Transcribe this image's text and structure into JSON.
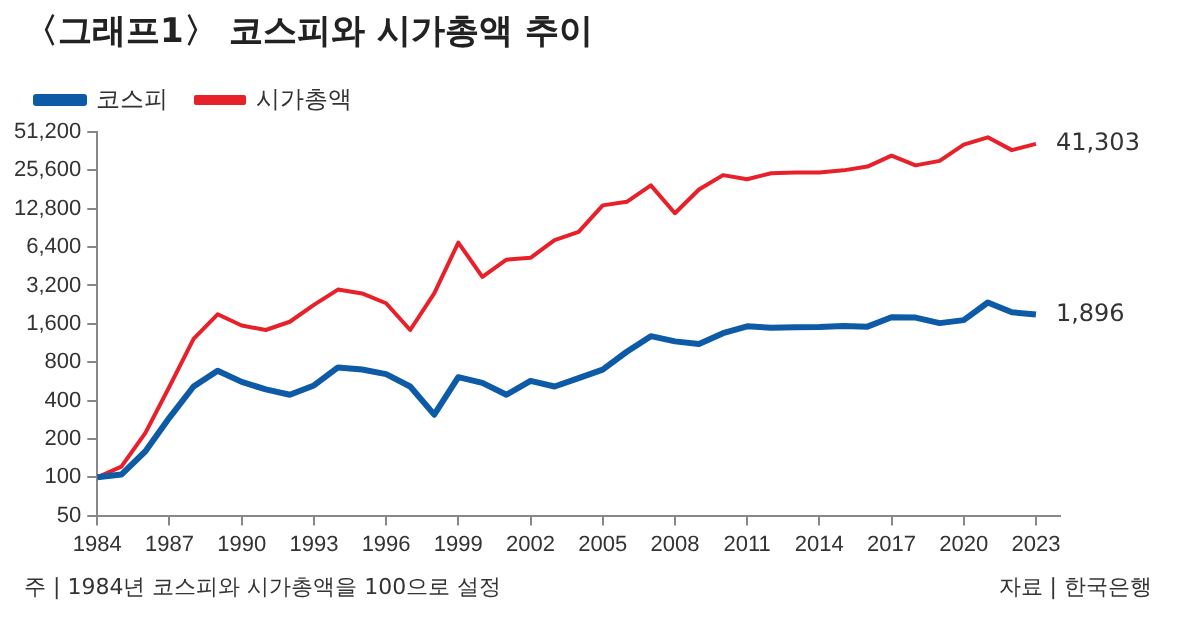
{
  "chart_data": {
    "type": "line",
    "title": "〈그래프1〉 코스피와 시가총액 추이",
    "x": [
      1984,
      1985,
      1986,
      1987,
      1988,
      1989,
      1990,
      1991,
      1992,
      1993,
      1994,
      1995,
      1996,
      1997,
      1998,
      1999,
      2000,
      2001,
      2002,
      2003,
      2004,
      2005,
      2006,
      2007,
      2008,
      2009,
      2010,
      2011,
      2012,
      2013,
      2014,
      2015,
      2016,
      2017,
      2018,
      2019,
      2020,
      2021,
      2022,
      2023
    ],
    "series": [
      {
        "name": "코스피",
        "color": "#0d5aa7",
        "values": [
          100,
          105,
          160,
          294,
          515,
          686,
          560,
          489,
          444,
          525,
          727,
          700,
          645,
          515,
          310,
          610,
          550,
          444,
          570,
          515,
          600,
          700,
          965,
          1280,
          1165,
          1110,
          1350,
          1530,
          1490,
          1500,
          1510,
          1540,
          1520,
          1800,
          1790,
          1620,
          1710,
          2350,
          1970,
          1896
        ]
      },
      {
        "name": "시가총액",
        "color": "#e8202a",
        "values": [
          100,
          121,
          223,
          515,
          1220,
          1900,
          1550,
          1430,
          1660,
          2250,
          2970,
          2770,
          2320,
          1430,
          2770,
          6940,
          3740,
          5100,
          5270,
          7260,
          8420,
          13600,
          14500,
          19500,
          11800,
          18100,
          23500,
          21800,
          24300,
          24600,
          24600,
          25600,
          27400,
          33400,
          28000,
          30400,
          40700,
          46500,
          36900,
          41303
        ]
      }
    ],
    "log": "y",
    "xlim": [
      1984,
      2024
    ],
    "ylim": [
      50,
      51200
    ],
    "xticks": [
      1984,
      1987,
      1990,
      1993,
      1996,
      1999,
      2002,
      2005,
      2008,
      2011,
      2014,
      2017,
      2020,
      2023
    ],
    "yticks": [
      50,
      100,
      200,
      400,
      800,
      {
        "value": 1600,
        "label": "1,600"
      },
      {
        "value": 3200,
        "label": "3,200"
      },
      {
        "value": 6400,
        "label": "6,400"
      },
      {
        "value": 12800,
        "label": "12,800"
      },
      {
        "value": 25600,
        "label": "25,600"
      },
      {
        "value": 51200,
        "label": "51,200"
      }
    ],
    "grid": false,
    "legend": "top left",
    "marker": "none",
    "line_style": "solid",
    "annotations": [
      {
        "text": "41,303",
        "x": 2023,
        "y": 41303
      },
      {
        "text": "1,896",
        "x": 2023,
        "y": 1896
      },
      "주 | 1984년 코스피와 시가총액을 100으로 설정",
      "자료 | 한국은행"
    ]
  }
}
